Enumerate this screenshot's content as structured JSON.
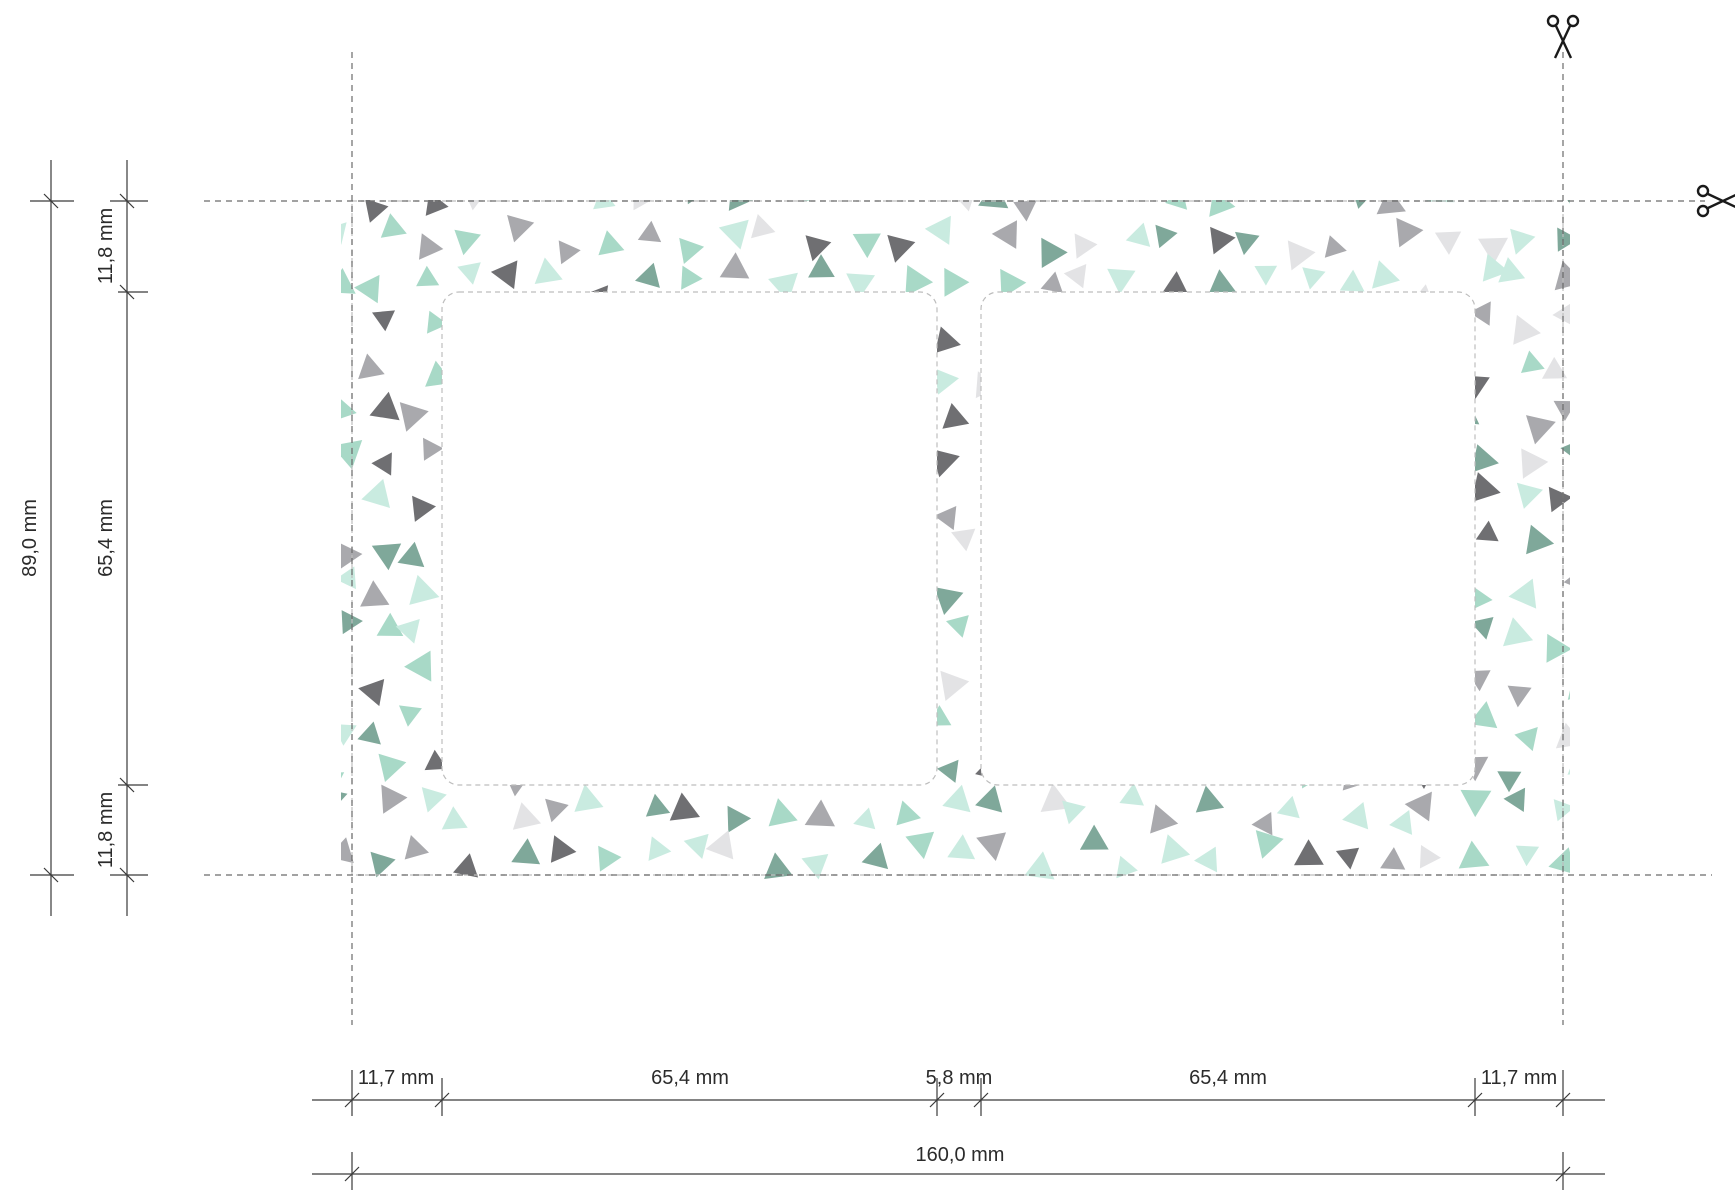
{
  "dimensions": {
    "horizontal": [
      "11,7 mm",
      "65,4 mm",
      "5,8 mm",
      "65,4 mm",
      "11,7 mm"
    ],
    "total_width": "160,0 mm",
    "vertical": [
      "11,8 mm",
      "65,4 mm",
      "11,8 mm"
    ],
    "total_height": "89,0 mm"
  },
  "pattern": {
    "colors": [
      "#6f6f72",
      "#a9a9ad",
      "#e3e3e5",
      "#7fa89a",
      "#a8d9c7",
      "#c9ebe0"
    ]
  },
  "icons": [
    "scissors-icon",
    "scissors-icon"
  ]
}
